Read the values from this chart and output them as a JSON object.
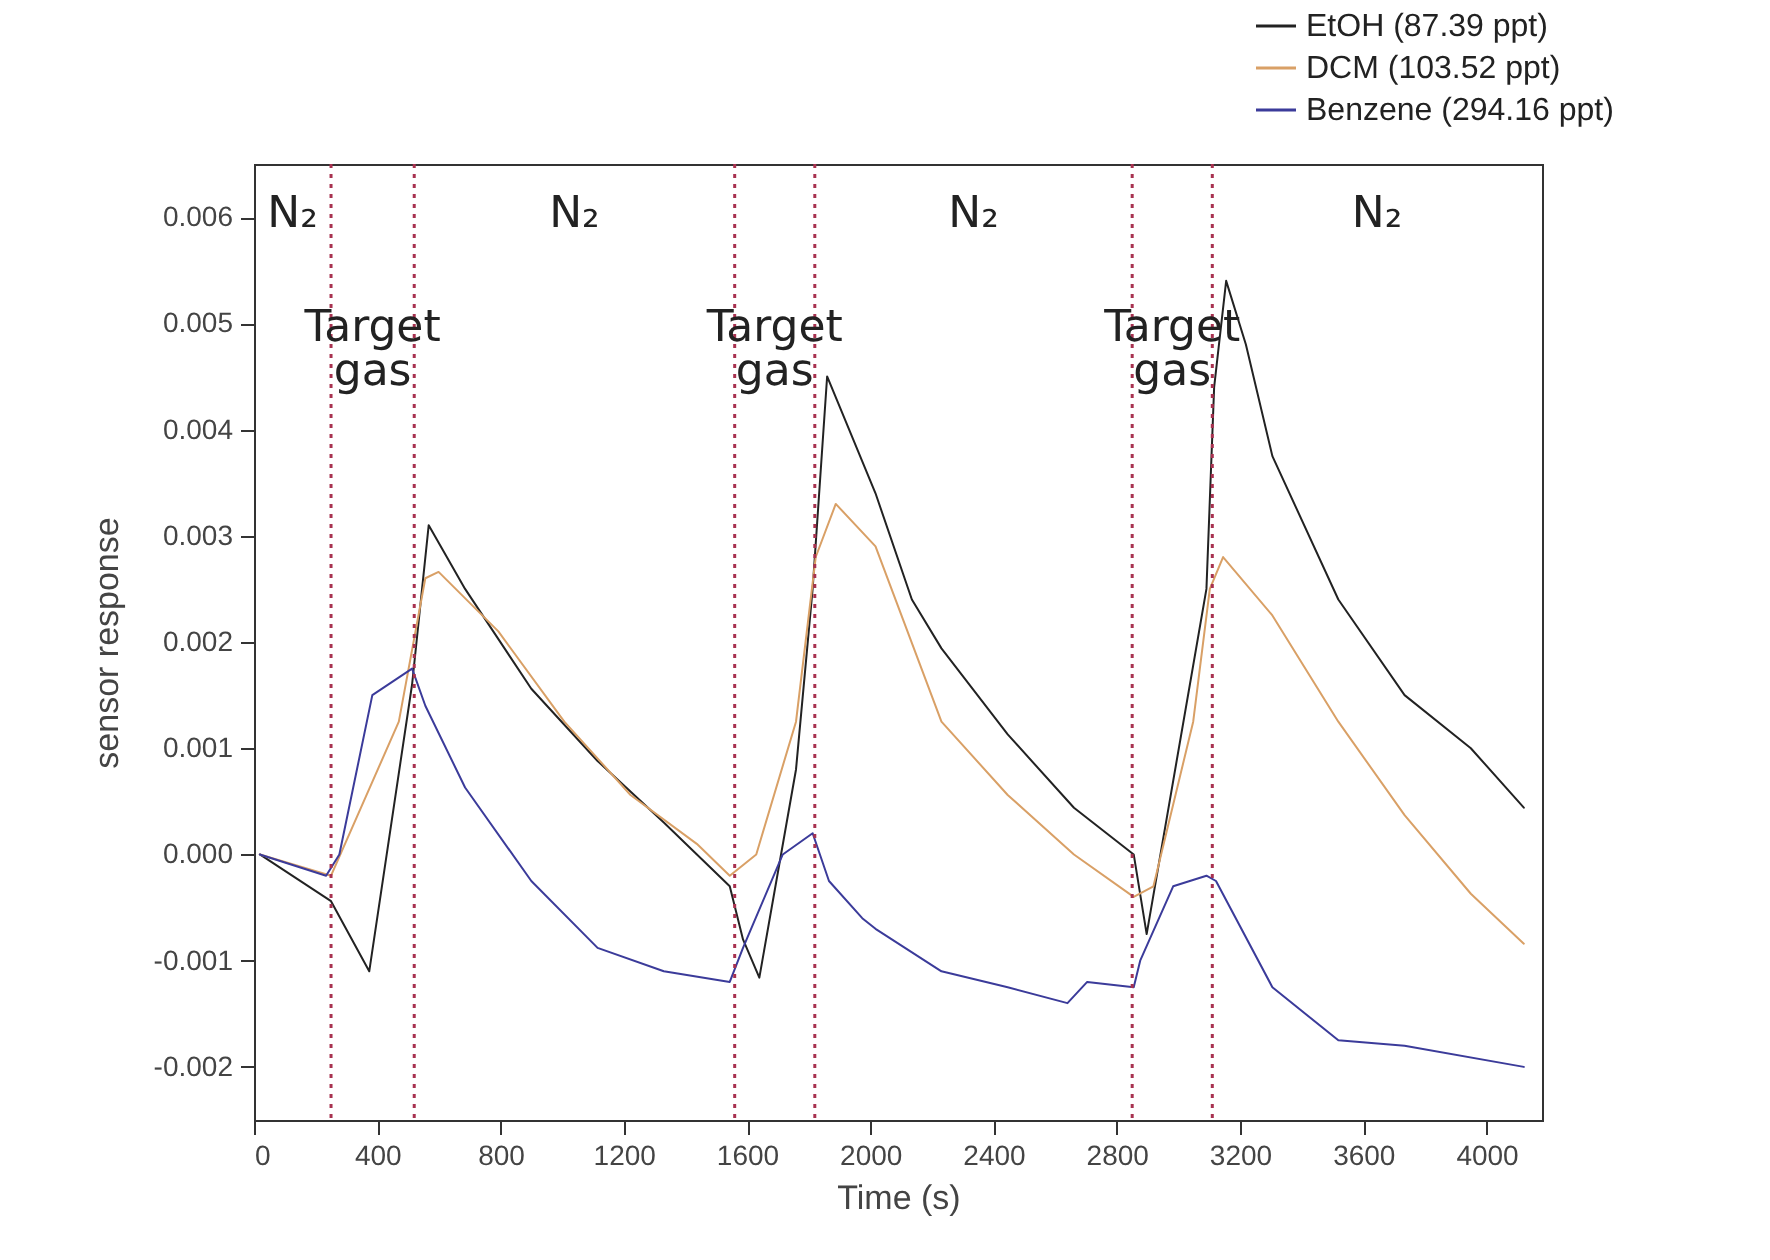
{
  "chart_data": {
    "type": "line",
    "xlabel": "Time (s)",
    "ylabel": "sensor response",
    "xlim": [
      0,
      4180
    ],
    "xticks": [
      0,
      400,
      800,
      1200,
      1600,
      2000,
      2400,
      2800,
      3200,
      3600,
      4000
    ],
    "ylim": [
      -0.0025,
      0.0065
    ],
    "yticks": [
      {
        "value": -0.002,
        "label": "-0.002"
      },
      {
        "value": -0.001,
        "label": "-0.001"
      },
      {
        "value": 0,
        "label": "0.000"
      },
      {
        "value": 0.001,
        "label": "0.001"
      },
      {
        "value": 0.002,
        "label": "0.002"
      },
      {
        "value": 0.003,
        "label": "0.003"
      },
      {
        "value": 0.004,
        "label": "0.004"
      },
      {
        "value": 0.005,
        "label": "0.005"
      },
      {
        "value": 0.006,
        "label": "0.006"
      }
    ],
    "grid": false,
    "legend": "top right",
    "line_style": "solid",
    "marker": "none",
    "series": [
      {
        "name": "EtOH (87.39 ppt)",
        "color": "#222222",
        "x": [
          19,
          250,
          374,
          513,
          567,
          685,
          900,
          1115,
          1330,
          1544,
          1587,
          1640,
          1759,
          1813,
          1860,
          2017,
          2135,
          2231,
          2446,
          2661,
          2855,
          2897,
          3091,
          3116,
          3155,
          3219,
          3305,
          3519,
          3734,
          3949,
          4121
        ],
        "values": [
          0,
          -0.00044,
          -0.0011,
          0.0016,
          0.0031,
          0.0025,
          0.00156,
          0.00088,
          0.0003,
          -0.0003,
          -0.0008,
          -0.00116,
          0.0008,
          0.0025,
          0.0045,
          0.0034,
          0.0024,
          0.00194,
          0.00113,
          0.00044,
          0,
          -0.00075,
          0.0025,
          0.0044,
          0.0054,
          0.0048,
          0.00375,
          0.0024,
          0.0015,
          0.001,
          0.00044
        ]
      },
      {
        "name": "DCM (103.52 ppt)",
        "color": "#d9a066",
        "x": [
          19,
          250,
          470,
          556,
          599,
          793,
          1007,
          1222,
          1437,
          1544,
          1630,
          1759,
          1823,
          1888,
          2017,
          2231,
          2446,
          2661,
          2855,
          2919,
          3048,
          3102,
          3145,
          3305,
          3519,
          3734,
          3949,
          4121
        ],
        "values": [
          0,
          -0.0002,
          0.00125,
          0.0026,
          0.00266,
          0.0021,
          0.00125,
          0.00056,
          0.0001,
          -0.0002,
          0,
          0.00125,
          0.0028,
          0.0033,
          0.0029,
          0.00125,
          0.00056,
          0,
          -0.0004,
          -0.0003,
          0.00125,
          0.0025,
          0.0028,
          0.00225,
          0.00125,
          0.00037,
          -0.00037,
          -0.00084
        ]
      },
      {
        "name": "Benzene (294.16 ppt)",
        "color": "#3b3b9a",
        "x": [
          19,
          234,
          277,
          384,
          513,
          556,
          685,
          900,
          1115,
          1330,
          1544,
          1587,
          1716,
          1813,
          1866,
          1974,
          2017,
          2231,
          2446,
          2640,
          2704,
          2855,
          2876,
          2983,
          3091,
          3122,
          3305,
          3519,
          3734,
          4121
        ],
        "values": [
          0,
          -0.0002,
          0,
          0.0015,
          0.00175,
          0.0014,
          0.00063,
          -0.00025,
          -0.00088,
          -0.0011,
          -0.0012,
          -0.00088,
          0,
          0.0002,
          -0.00025,
          -0.0006,
          -0.0007,
          -0.0011,
          -0.00125,
          -0.0014,
          -0.0012,
          -0.00125,
          -0.001,
          -0.0003,
          -0.0002,
          -0.00025,
          -0.00125,
          -0.00175,
          -0.0018,
          -0.002
        ]
      }
    ],
    "ref_lines": [
      {
        "axis": "x",
        "value": 250,
        "color": "#a83250",
        "line_style": "dotted"
      },
      {
        "axis": "x",
        "value": 520,
        "color": "#a83250",
        "line_style": "dotted"
      },
      {
        "axis": "x",
        "value": 1560,
        "color": "#a83250",
        "line_style": "dotted"
      },
      {
        "axis": "x",
        "value": 1820,
        "color": "#a83250",
        "line_style": "dotted"
      },
      {
        "axis": "x",
        "value": 2850,
        "color": "#a83250",
        "line_style": "dotted"
      },
      {
        "axis": "x",
        "value": 3110,
        "color": "#a83250",
        "line_style": "dotted"
      }
    ],
    "annotations": [
      "N₂",
      "N₂",
      "N₂",
      "N₂",
      "Target gas",
      "Target gas",
      "Target gas"
    ]
  }
}
